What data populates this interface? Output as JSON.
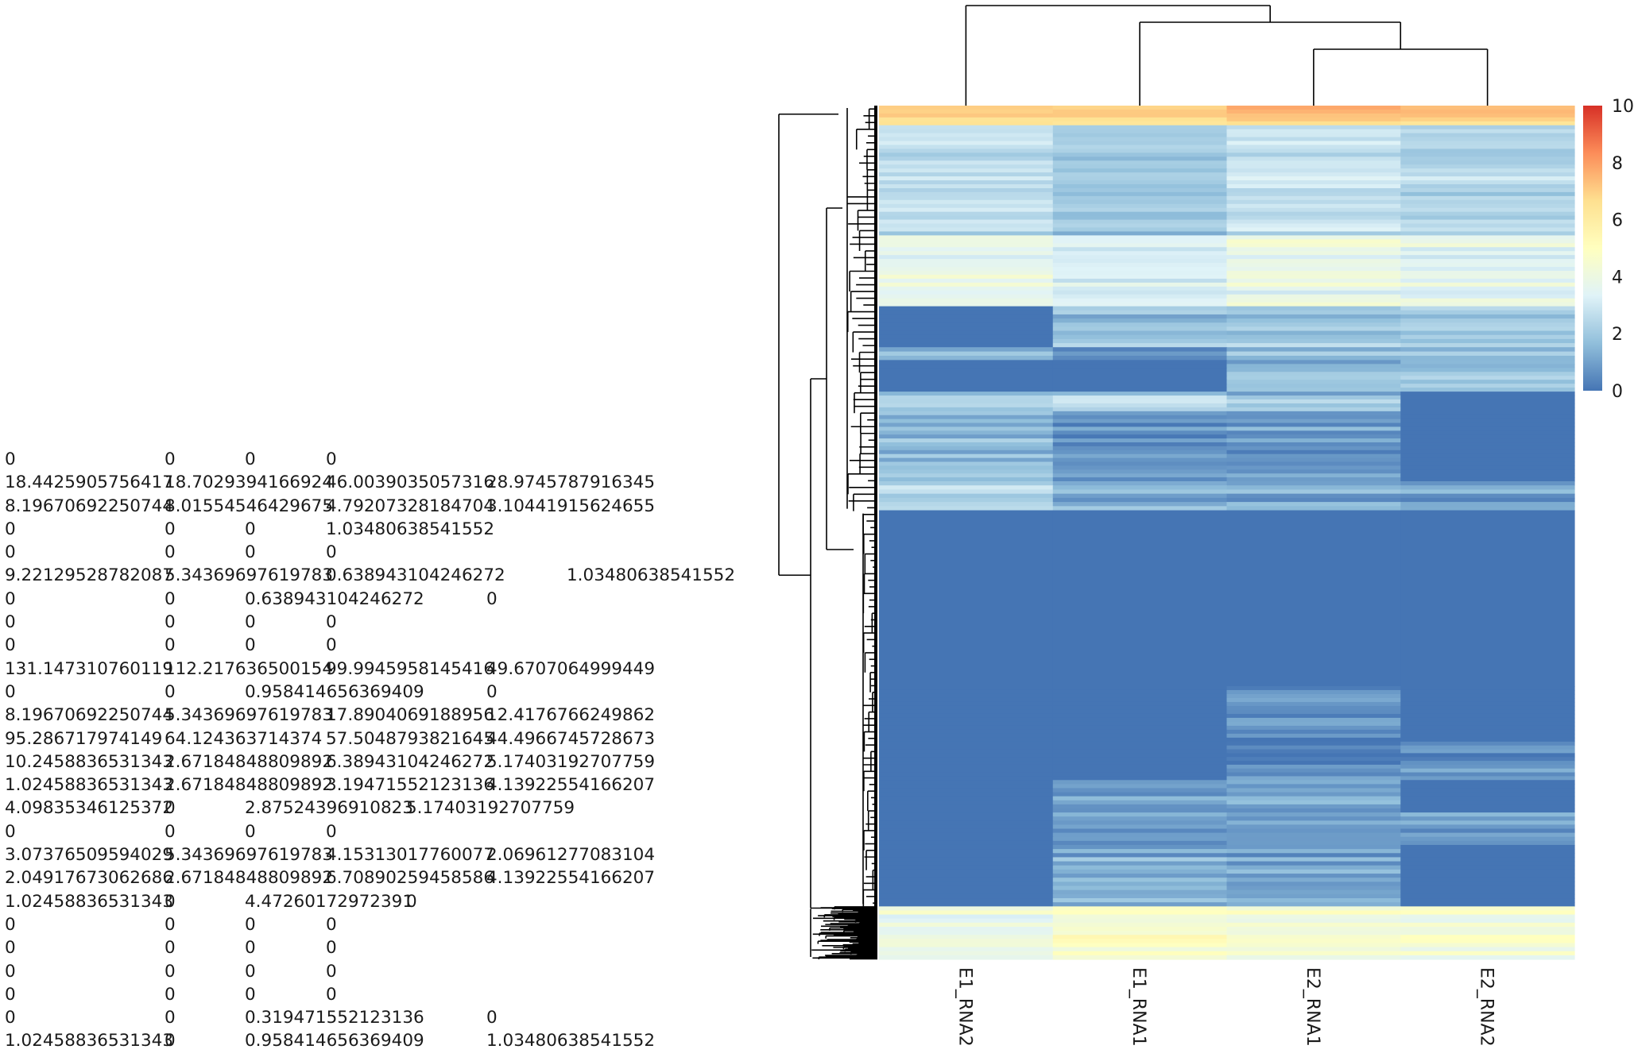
{
  "data_table": {
    "rows": [
      [
        "0",
        "0",
        "0",
        "0"
      ],
      [
        "18.4425905756417",
        "18.7029394166924",
        "46.0039035057316",
        "28.9745787916345"
      ],
      [
        "8.19670692250744",
        "8.01554546429675",
        "4.79207328184704",
        "3.10441915624655"
      ],
      [
        "0",
        "0",
        "0",
        "1.03480638541552"
      ],
      [
        "0",
        "0",
        "0",
        "0"
      ],
      [
        "9.22129528782087",
        "5.34369697619783",
        "0.638943104246272",
        "1.03480638541552"
      ],
      [
        "0",
        "0",
        "0.638943104246272",
        "0"
      ],
      [
        "0",
        "0",
        "0",
        "0"
      ],
      [
        "0",
        "0",
        "0",
        "0"
      ],
      [
        "131.147310760119",
        "112.217636500154",
        "99.9945958145416",
        "49.6707064999449"
      ],
      [
        "0",
        "0",
        "0.958414656369409",
        "0"
      ],
      [
        "8.19670692250744",
        "5.34369697619783",
        "17.8904069188956",
        "12.4176766249862"
      ],
      [
        "95.286717974149",
        "64.124363714374",
        "57.5048793821645",
        "44.4966745728673"
      ],
      [
        "10.2458836531343",
        "2.67184848809892",
        "6.38943104246272",
        "5.17403192707759"
      ],
      [
        "1.02458836531343",
        "2.67184848809892",
        "3.19471552123136",
        "4.13922554166207"
      ],
      [
        "4.09835346125372",
        "0",
        "2.87524396910823",
        "5.17403192707759"
      ],
      [
        "0",
        "0",
        "0",
        "0"
      ],
      [
        "3.07376509594029",
        "5.34369697619783",
        "4.15313017760077",
        "2.06961277083104"
      ],
      [
        "2.04917673062686",
        "2.67184848809892",
        "6.70890259458586",
        "4.13922554166207"
      ],
      [
        "1.02458836531343",
        "0",
        "4.47260172972391",
        "0"
      ],
      [
        "0",
        "0",
        "0",
        "0"
      ],
      [
        "0",
        "0",
        "0",
        "0"
      ],
      [
        "0",
        "0",
        "0",
        "0"
      ],
      [
        "0",
        "0",
        "0",
        "0"
      ],
      [
        "0",
        "0",
        "0.319471552123136",
        "0"
      ],
      [
        "1.02458836531343",
        "0",
        "0.958414656369409",
        "1.03480638541552"
      ]
    ]
  },
  "chart_data": {
    "type": "heatmap",
    "columns": [
      "E1_RNA2",
      "E1_RNA1",
      "E2_RNA1",
      "E2_RNA2"
    ],
    "colorbar": {
      "range": [
        0,
        10
      ],
      "ticks": [
        0,
        2,
        4,
        6,
        8,
        10
      ],
      "colors": [
        "#4575b4",
        "#91bfdb",
        "#e0f3f8",
        "#ffffbf",
        "#fee090",
        "#fc8d59",
        "#d73027"
      ]
    },
    "column_dendrogram": {
      "groups": [
        [
          "E1_RNA2"
        ],
        [
          "E1_RNA1",
          [
            "E2_RNA1",
            "E2_RNA2"
          ]
        ]
      ]
    },
    "row_clusters": [
      {
        "from": 0.0,
        "to": 0.023,
        "values": [
          7.0,
          6.6,
          7.2,
          7.0
        ]
      },
      {
        "from": 0.023,
        "to": 0.152,
        "values": [
          2.6,
          2.0,
          2.8,
          2.4
        ]
      },
      {
        "from": 0.152,
        "to": 0.235,
        "values": [
          3.6,
          3.2,
          3.8,
          3.4
        ]
      },
      {
        "from": 0.235,
        "to": 0.283,
        "values": [
          0.0,
          1.7,
          1.9,
          2.0
        ]
      },
      {
        "from": 0.283,
        "to": 0.298,
        "values": [
          1.3,
          0.3,
          1.6,
          1.7
        ]
      },
      {
        "from": 0.298,
        "to": 0.335,
        "values": [
          0.0,
          0.0,
          1.6,
          1.8
        ]
      },
      {
        "from": 0.335,
        "to": 0.358,
        "values": [
          1.9,
          2.4,
          1.7,
          0.0
        ]
      },
      {
        "from": 0.358,
        "to": 0.44,
        "values": [
          1.8,
          0.9,
          1.0,
          0.0
        ]
      },
      {
        "from": 0.44,
        "to": 0.474,
        "values": [
          2.3,
          1.2,
          1.2,
          1.0
        ]
      },
      {
        "from": 0.474,
        "to": 0.68,
        "values": [
          0.0,
          0.0,
          0.0,
          0.0
        ]
      },
      {
        "from": 0.68,
        "to": 0.745,
        "values": [
          0.0,
          0.0,
          0.6,
          0.0
        ]
      },
      {
        "from": 0.745,
        "to": 0.79,
        "values": [
          0.0,
          0.0,
          0.5,
          0.7
        ]
      },
      {
        "from": 0.79,
        "to": 0.828,
        "values": [
          0.0,
          1.0,
          1.1,
          0.0
        ]
      },
      {
        "from": 0.828,
        "to": 0.866,
        "values": [
          0.0,
          0.9,
          0.8,
          0.8
        ]
      },
      {
        "from": 0.866,
        "to": 0.938,
        "values": [
          0.0,
          1.2,
          0.9,
          0.0
        ]
      },
      {
        "from": 0.938,
        "to": 1.0,
        "values": [
          3.9,
          4.7,
          4.4,
          4.3
        ]
      }
    ]
  }
}
